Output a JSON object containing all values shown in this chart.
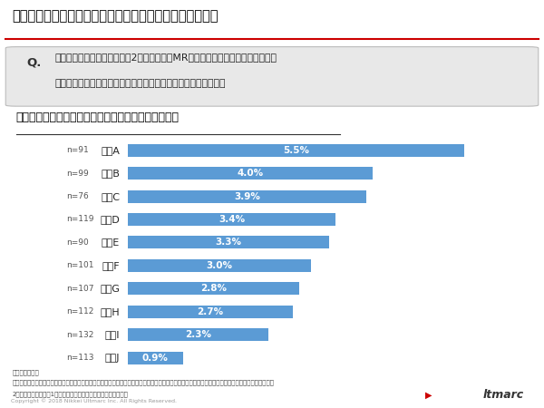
{
  "title": "【独自調査】糖尿病領域における販売情報提供活動の実態",
  "question_line1": "糖尿病治療薬に関して、直近2週間で受けたMRからの対面での情報提供のうち、",
  "question_line2": "ガイドラインへの抗触があったかどうかについてお答えください",
  "subtitle": "ガイドラインへの抗触があったと回答した医師の割合",
  "companies": [
    "企業A",
    "企業B",
    "企業C",
    "企業D",
    "企業E",
    "企業F",
    "企業G",
    "企業H",
    "企業I",
    "企業J"
  ],
  "n_labels": [
    "n=91",
    "n=99",
    "n=76",
    "n=119",
    "n=90",
    "n=101",
    "n=107",
    "n=112",
    "n=132",
    "n=113"
  ],
  "values": [
    5.5,
    4.0,
    3.9,
    3.4,
    3.3,
    3.0,
    2.8,
    2.7,
    2.3,
    0.9
  ],
  "bar_color": "#5B9BD5",
  "bg_color": "#FFFFFF",
  "title_color": "#000000",
  "subtitle_color": "#000000",
  "footnote_line1": "調査対象医師：",
  "footnote_line2": "「医療用医薬品の販売情報提供活動に関するガイドライン」に対する順慮度が「十分に順慮している」または「ある程度順慮している」であり、かつ、",
  "footnote_line3": "2型糖尿病患者を過去1ヵ月間で名以上診察した、と自答した医師",
  "copyright": "Copyright © 2018 Nikkei Ultmarc Inc. All Rights Reserved.",
  "xlim_max": 6.5,
  "bar_height": 0.55,
  "red_line_color": "#CC0000",
  "q_box_color": "#E8E8E8",
  "q_box_edge_color": "#BBBBBB"
}
